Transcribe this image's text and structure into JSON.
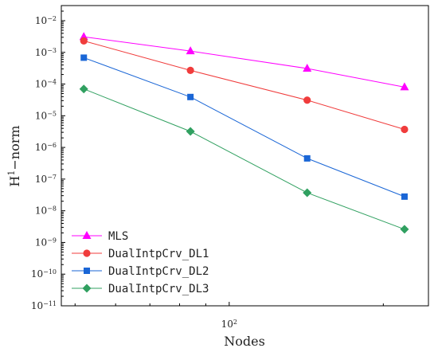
{
  "chart_data": {
    "type": "line",
    "xscale": "log",
    "yscale": "log",
    "xlabel": "Nodes",
    "ylabel_main": "H",
    "ylabel_sup": "1",
    "ylabel_rest": "−norm",
    "xlim": [
      47,
      245
    ],
    "ylim": [
      1e-11,
      0.03
    ],
    "x_ticks": [
      {
        "value": 100,
        "base": "10",
        "exp": "2"
      }
    ],
    "y_ticks": [
      {
        "value": 0.01,
        "base": "10",
        "exp": "-2"
      },
      {
        "value": 0.001,
        "base": "10",
        "exp": "-3"
      },
      {
        "value": 0.0001,
        "base": "10",
        "exp": "-4"
      },
      {
        "value": 1e-05,
        "base": "10",
        "exp": "-5"
      },
      {
        "value": 1e-06,
        "base": "10",
        "exp": "-6"
      },
      {
        "value": 1e-07,
        "base": "10",
        "exp": "-7"
      },
      {
        "value": 1e-08,
        "base": "10",
        "exp": "-8"
      },
      {
        "value": 1e-09,
        "base": "10",
        "exp": "-9"
      },
      {
        "value": 1e-10,
        "base": "10",
        "exp": "-10"
      },
      {
        "value": 1e-11,
        "base": "10",
        "exp": "-11"
      }
    ],
    "x": [
      52,
      84,
      142,
      220
    ],
    "legend_position": "bottom-left",
    "series": [
      {
        "name": "MLS",
        "color": "#ff00ff",
        "marker": "triangle",
        "values": [
          0.0031,
          0.0011,
          0.00031,
          8e-05
        ]
      },
      {
        "name": "DualIntpCrv_DL1",
        "color": "#f03c3c",
        "marker": "circle",
        "values": [
          0.0023,
          0.00027,
          3.1e-05,
          3.7e-06
        ]
      },
      {
        "name": "DualIntpCrv_DL2",
        "color": "#1a66d6",
        "marker": "square",
        "values": [
          0.00068,
          3.9e-05,
          4.5e-07,
          2.8e-08
        ]
      },
      {
        "name": "DualIntpCrv_DL3",
        "color": "#30a060",
        "marker": "diamond",
        "values": [
          7e-05,
          3.2e-06,
          3.7e-08,
          2.6e-09
        ]
      }
    ]
  }
}
